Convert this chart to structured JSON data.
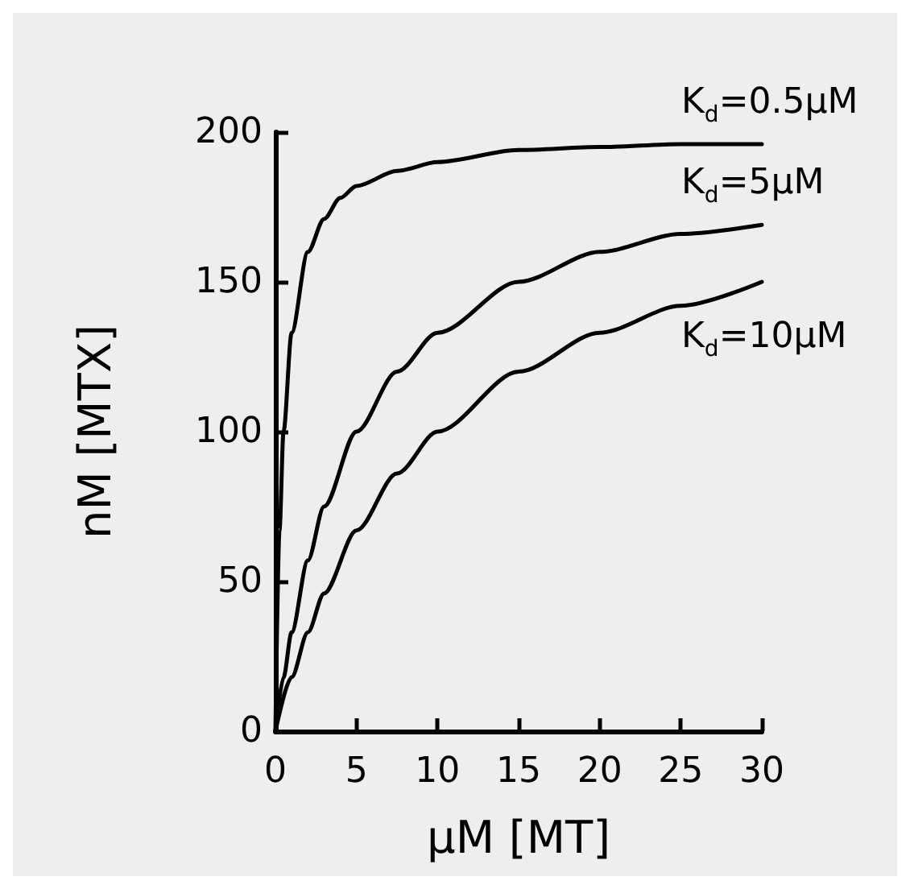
{
  "chart_data": {
    "type": "line",
    "xlabel": "μM [MT]",
    "ylabel": "nM [MTX]",
    "xlim": [
      0,
      30
    ],
    "ylim": [
      0,
      200
    ],
    "xticks": [
      0,
      5,
      10,
      15,
      20,
      25,
      30
    ],
    "yticks": [
      0,
      50,
      100,
      150,
      200
    ],
    "grid": false,
    "series": [
      {
        "name": "K$_{d}$=0.5μM",
        "color": "#000000",
        "x": [
          0,
          0.25,
          0.5,
          1,
          2,
          3,
          4,
          5,
          7.5,
          10,
          15,
          20,
          25,
          30
        ],
        "values": [
          0,
          67,
          100,
          133,
          160,
          171,
          178,
          182,
          187,
          190,
          194,
          195,
          196,
          196
        ]
      },
      {
        "name": "K$_{d}$=5μM",
        "color": "#000000",
        "x": [
          0,
          0.5,
          1,
          2,
          3,
          5,
          7.5,
          10,
          15,
          20,
          25,
          30
        ],
        "values": [
          0,
          18,
          33,
          57,
          75,
          100,
          120,
          133,
          150,
          160,
          166,
          169
        ]
      },
      {
        "name": "K$_{d}$=10μM",
        "color": "#000000",
        "x": [
          0,
          1,
          2,
          3,
          5,
          7.5,
          10,
          15,
          20,
          25,
          30
        ],
        "values": [
          0,
          18,
          33,
          46,
          67,
          86,
          100,
          120,
          133,
          142,
          150
        ]
      }
    ]
  }
}
